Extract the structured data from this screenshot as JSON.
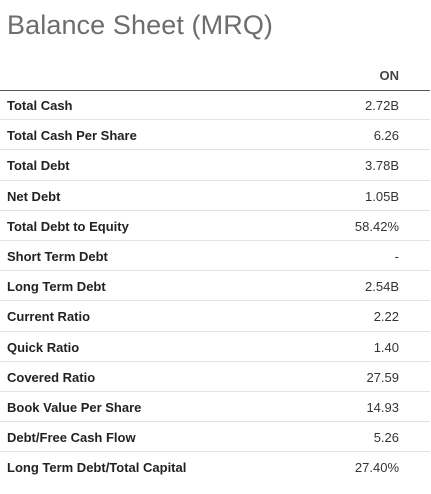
{
  "title": "Balance Sheet (MRQ)",
  "column_header": "ON",
  "rows": [
    {
      "label": "Total Cash",
      "value": "2.72B"
    },
    {
      "label": "Total Cash Per Share",
      "value": "6.26"
    },
    {
      "label": "Total Debt",
      "value": "3.78B"
    },
    {
      "label": "Net Debt",
      "value": "1.05B"
    },
    {
      "label": "Total Debt to Equity",
      "value": "58.42%"
    },
    {
      "label": "Short Term Debt",
      "value": "-"
    },
    {
      "label": "Long Term Debt",
      "value": "2.54B"
    },
    {
      "label": "Current Ratio",
      "value": "2.22"
    },
    {
      "label": "Quick Ratio",
      "value": "1.40"
    },
    {
      "label": "Covered Ratio",
      "value": "27.59"
    },
    {
      "label": "Book Value Per Share",
      "value": "14.93"
    },
    {
      "label": "Debt/Free Cash Flow",
      "value": "5.26"
    },
    {
      "label": "Long Term Debt/Total Capital",
      "value": "27.40%"
    }
  ]
}
